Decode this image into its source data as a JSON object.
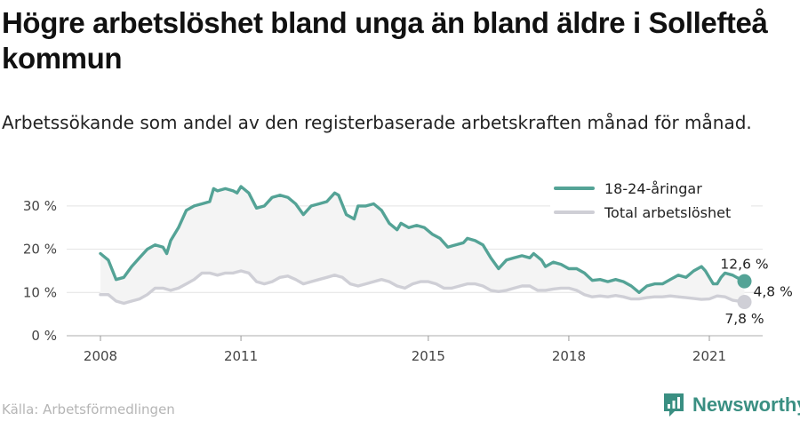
{
  "title": "Högre arbetslöshet bland unga än bland äldre i Sollefteå kommun",
  "subtitle": "Arbetssökande som andel av den registerbaserade arbetskraften månad för månad.",
  "source": "Källa: Arbetsförmedlingen",
  "brand": "Newsworthy",
  "colors": {
    "youth": "#54a396",
    "total": "#cfcfd6",
    "band": "#f4f4f4",
    "grid": "#e3e3e3",
    "brand": "#3a8f82"
  },
  "chart_data": {
    "type": "line",
    "xlabel": "",
    "ylabel": "",
    "ylim": [
      0,
      38
    ],
    "xlim": [
      "2008-01",
      "2022-04"
    ],
    "y_ticks": [
      0,
      10,
      20,
      30
    ],
    "y_tick_labels": [
      "0 %",
      "10 %",
      "20 %",
      "30 %"
    ],
    "x_ticks": [
      "2008-01",
      "2011-01",
      "2015-01",
      "2018-01",
      "2021-01"
    ],
    "x_tick_labels": [
      "2008",
      "2011",
      "2015",
      "2018",
      "2021"
    ],
    "grid": "horizontal",
    "legend_position": "top-right",
    "series": [
      {
        "name": "18-24-åringar",
        "color": "#54a396",
        "points": [
          [
            "2008-01",
            19
          ],
          [
            "2008-03",
            17.5
          ],
          [
            "2008-05",
            13
          ],
          [
            "2008-07",
            13.5
          ],
          [
            "2008-09",
            16
          ],
          [
            "2008-11",
            18
          ],
          [
            "2009-01",
            20
          ],
          [
            "2009-03",
            21
          ],
          [
            "2009-05",
            20.5
          ],
          [
            "2009-06",
            19
          ],
          [
            "2009-07",
            22
          ],
          [
            "2009-09",
            25
          ],
          [
            "2009-11",
            29
          ],
          [
            "2010-01",
            30
          ],
          [
            "2010-03",
            30.5
          ],
          [
            "2010-05",
            31
          ],
          [
            "2010-06",
            34
          ],
          [
            "2010-07",
            33.5
          ],
          [
            "2010-09",
            34
          ],
          [
            "2010-11",
            33.5
          ],
          [
            "2010-12",
            33
          ],
          [
            "2011-01",
            34.5
          ],
          [
            "2011-03",
            33
          ],
          [
            "2011-05",
            29.5
          ],
          [
            "2011-07",
            30
          ],
          [
            "2011-09",
            32
          ],
          [
            "2011-11",
            32.5
          ],
          [
            "2012-01",
            32
          ],
          [
            "2012-03",
            30.5
          ],
          [
            "2012-05",
            28
          ],
          [
            "2012-07",
            30
          ],
          [
            "2012-09",
            30.5
          ],
          [
            "2012-11",
            31
          ],
          [
            "2013-01",
            33
          ],
          [
            "2013-02",
            32.5
          ],
          [
            "2013-04",
            28
          ],
          [
            "2013-06",
            27
          ],
          [
            "2013-07",
            30
          ],
          [
            "2013-09",
            30
          ],
          [
            "2013-11",
            30.5
          ],
          [
            "2014-01",
            29
          ],
          [
            "2014-03",
            26
          ],
          [
            "2014-05",
            24.5
          ],
          [
            "2014-06",
            26
          ],
          [
            "2014-08",
            25
          ],
          [
            "2014-10",
            25.5
          ],
          [
            "2014-12",
            25
          ],
          [
            "2015-02",
            23.5
          ],
          [
            "2015-04",
            22.5
          ],
          [
            "2015-06",
            20.5
          ],
          [
            "2015-08",
            21
          ],
          [
            "2015-10",
            21.5
          ],
          [
            "2015-11",
            22.5
          ],
          [
            "2016-01",
            22
          ],
          [
            "2016-03",
            21
          ],
          [
            "2016-05",
            18
          ],
          [
            "2016-07",
            15.5
          ],
          [
            "2016-09",
            17.5
          ],
          [
            "2016-11",
            18
          ],
          [
            "2017-01",
            18.5
          ],
          [
            "2017-03",
            18
          ],
          [
            "2017-04",
            19
          ],
          [
            "2017-06",
            17.5
          ],
          [
            "2017-07",
            16
          ],
          [
            "2017-09",
            17
          ],
          [
            "2017-11",
            16.5
          ],
          [
            "2018-01",
            15.5
          ],
          [
            "2018-03",
            15.5
          ],
          [
            "2018-05",
            14.5
          ],
          [
            "2018-07",
            12.8
          ],
          [
            "2018-09",
            13
          ],
          [
            "2018-11",
            12.5
          ],
          [
            "2019-01",
            13
          ],
          [
            "2019-03",
            12.5
          ],
          [
            "2019-05",
            11.5
          ],
          [
            "2019-07",
            10
          ],
          [
            "2019-09",
            11.5
          ],
          [
            "2019-11",
            12
          ],
          [
            "2020-01",
            12
          ],
          [
            "2020-03",
            13
          ],
          [
            "2020-05",
            14
          ],
          [
            "2020-07",
            13.5
          ],
          [
            "2020-09",
            15
          ],
          [
            "2020-11",
            16
          ],
          [
            "2020-12",
            15
          ],
          [
            "2021-02",
            12
          ],
          [
            "2021-03",
            12
          ],
          [
            "2021-04",
            13.5
          ],
          [
            "2021-05",
            14.5
          ],
          [
            "2021-07",
            14
          ],
          [
            "2021-08",
            13.5
          ],
          [
            "2021-10",
            12.6
          ]
        ]
      },
      {
        "name": "Total arbetslöshet",
        "color": "#cfcfd6",
        "points": [
          [
            "2008-01",
            9.5
          ],
          [
            "2008-03",
            9.5
          ],
          [
            "2008-05",
            8
          ],
          [
            "2008-07",
            7.5
          ],
          [
            "2008-09",
            8
          ],
          [
            "2008-11",
            8.5
          ],
          [
            "2009-01",
            9.5
          ],
          [
            "2009-03",
            11
          ],
          [
            "2009-05",
            11
          ],
          [
            "2009-07",
            10.5
          ],
          [
            "2009-09",
            11
          ],
          [
            "2009-11",
            12
          ],
          [
            "2010-01",
            13
          ],
          [
            "2010-03",
            14.5
          ],
          [
            "2010-05",
            14.5
          ],
          [
            "2010-07",
            14
          ],
          [
            "2010-09",
            14.5
          ],
          [
            "2010-11",
            14.5
          ],
          [
            "2011-01",
            15
          ],
          [
            "2011-03",
            14.5
          ],
          [
            "2011-05",
            12.5
          ],
          [
            "2011-07",
            12
          ],
          [
            "2011-09",
            12.5
          ],
          [
            "2011-11",
            13.5
          ],
          [
            "2012-01",
            13.8
          ],
          [
            "2012-03",
            13
          ],
          [
            "2012-05",
            12
          ],
          [
            "2012-07",
            12.5
          ],
          [
            "2012-09",
            13
          ],
          [
            "2012-11",
            13.5
          ],
          [
            "2013-01",
            14
          ],
          [
            "2013-03",
            13.5
          ],
          [
            "2013-05",
            12
          ],
          [
            "2013-07",
            11.5
          ],
          [
            "2013-09",
            12
          ],
          [
            "2013-11",
            12.5
          ],
          [
            "2014-01",
            13
          ],
          [
            "2014-03",
            12.5
          ],
          [
            "2014-05",
            11.5
          ],
          [
            "2014-07",
            11
          ],
          [
            "2014-09",
            12
          ],
          [
            "2014-11",
            12.5
          ],
          [
            "2015-01",
            12.5
          ],
          [
            "2015-03",
            12
          ],
          [
            "2015-05",
            11
          ],
          [
            "2015-07",
            11
          ],
          [
            "2015-09",
            11.5
          ],
          [
            "2015-11",
            12
          ],
          [
            "2016-01",
            12
          ],
          [
            "2016-03",
            11.5
          ],
          [
            "2016-05",
            10.5
          ],
          [
            "2016-07",
            10.2
          ],
          [
            "2016-09",
            10.5
          ],
          [
            "2016-11",
            11
          ],
          [
            "2017-01",
            11.5
          ],
          [
            "2017-03",
            11.5
          ],
          [
            "2017-05",
            10.5
          ],
          [
            "2017-07",
            10.5
          ],
          [
            "2017-09",
            10.8
          ],
          [
            "2017-11",
            11
          ],
          [
            "2018-01",
            11
          ],
          [
            "2018-03",
            10.5
          ],
          [
            "2018-05",
            9.5
          ],
          [
            "2018-07",
            9
          ],
          [
            "2018-09",
            9.2
          ],
          [
            "2018-11",
            9
          ],
          [
            "2019-01",
            9.3
          ],
          [
            "2019-03",
            9
          ],
          [
            "2019-05",
            8.5
          ],
          [
            "2019-07",
            8.5
          ],
          [
            "2019-09",
            8.8
          ],
          [
            "2019-11",
            9
          ],
          [
            "2020-01",
            9
          ],
          [
            "2020-03",
            9.2
          ],
          [
            "2020-05",
            9
          ],
          [
            "2020-07",
            8.8
          ],
          [
            "2020-09",
            8.6
          ],
          [
            "2020-11",
            8.4
          ],
          [
            "2021-01",
            8.5
          ],
          [
            "2021-03",
            9.2
          ],
          [
            "2021-05",
            9
          ],
          [
            "2021-07",
            8.2
          ],
          [
            "2021-10",
            7.8
          ]
        ]
      }
    ],
    "annotations": [
      {
        "label": "12,6 %",
        "series": "18-24-åringar",
        "value": 12.6,
        "x": "2021-10"
      },
      {
        "label": "4,8 %",
        "text_for": "difference",
        "value": 4.8,
        "x": "2021-10"
      },
      {
        "label": "7,8 %",
        "series": "Total arbetslöshet",
        "value": 7.8,
        "x": "2021-10"
      }
    ]
  }
}
